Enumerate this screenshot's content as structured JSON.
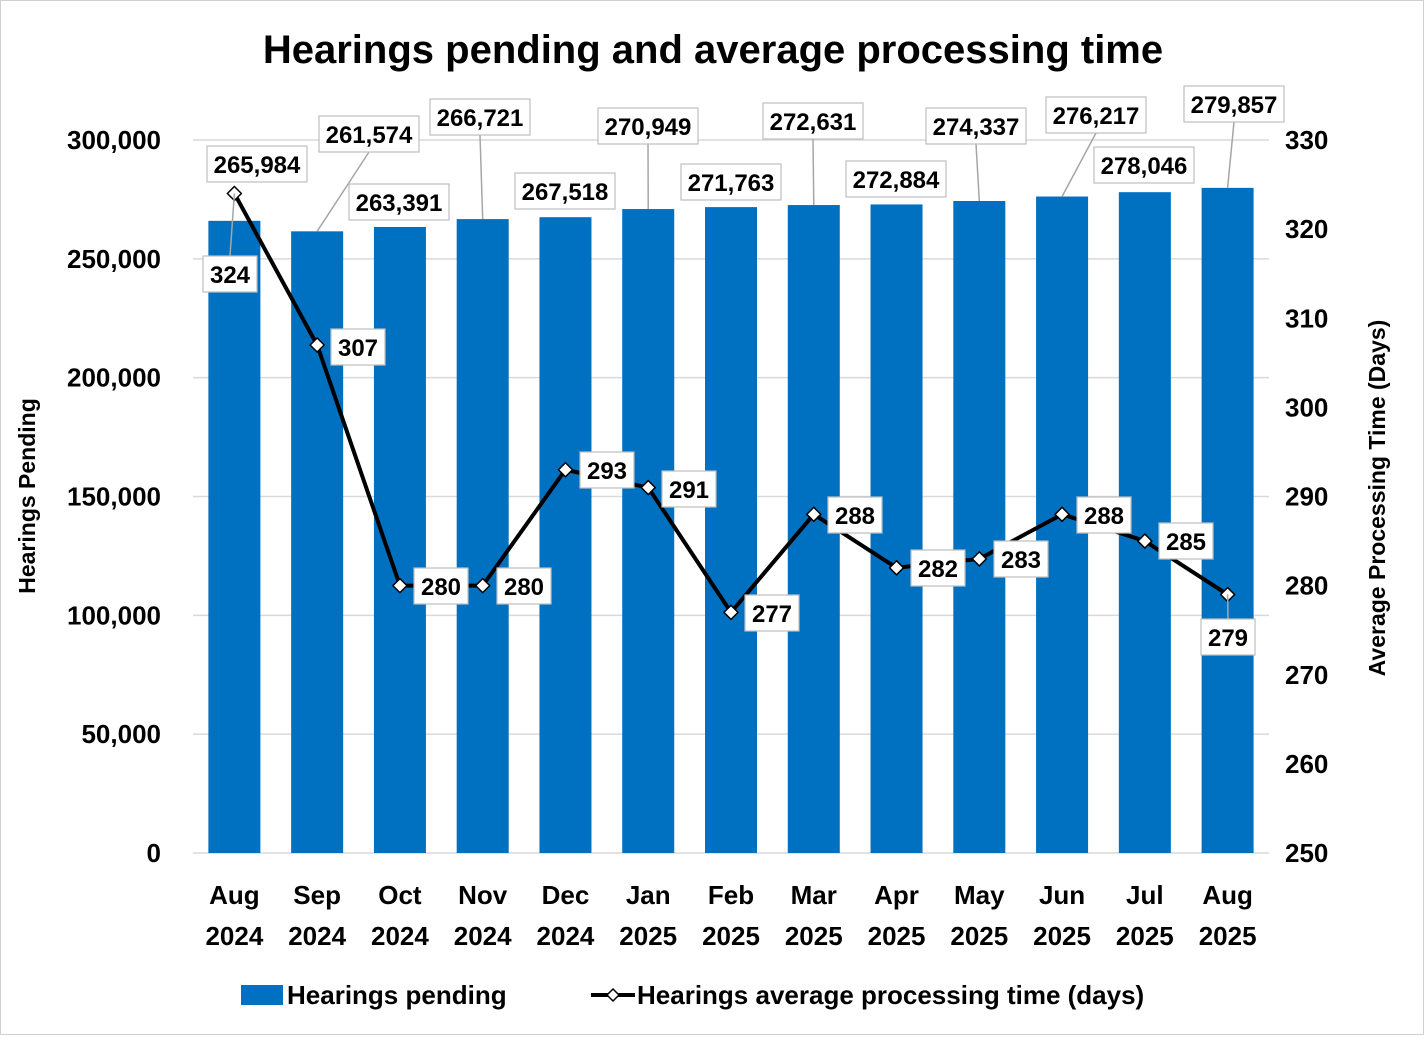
{
  "chart_data": {
    "type": "bar+line",
    "title": "Hearings pending and average processing time",
    "categories": [
      "Aug 2024",
      "Sep 2024",
      "Oct 2024",
      "Nov 2024",
      "Dec 2024",
      "Jan 2025",
      "Feb 2025",
      "Mar 2025",
      "Apr 2025",
      "May 2025",
      "Jun 2025",
      "Jul 2025",
      "Aug 2025"
    ],
    "y_left": {
      "label": "Hearings Pending",
      "range": [
        0,
        300000
      ],
      "ticks": [
        "0",
        "50,000",
        "100,000",
        "150,000",
        "200,000",
        "250,000",
        "300,000"
      ]
    },
    "y_right": {
      "label": "Average Processing Time (Days)",
      "range": [
        250,
        330
      ],
      "ticks": [
        "250",
        "260",
        "270",
        "280",
        "290",
        "300",
        "310",
        "320",
        "330"
      ]
    },
    "grid": true,
    "legend_position": "bottom",
    "series": [
      {
        "name": "Hearings pending",
        "type": "bar",
        "axis": "left",
        "color": "#0070C0",
        "values": [
          265984,
          261574,
          263391,
          266721,
          267518,
          270949,
          271763,
          272631,
          272884,
          274337,
          276217,
          278046,
          279857
        ],
        "labels": [
          "265,984",
          "261,574",
          "263,391",
          "266,721",
          "267,518",
          "270,949",
          "271,763",
          "272,631",
          "272,884",
          "274,337",
          "276,217",
          "278,046",
          "279,857"
        ]
      },
      {
        "name": "Hearings average processing time (days)",
        "type": "line",
        "axis": "right",
        "color": "#000000",
        "values": [
          324,
          307,
          280,
          280,
          293,
          291,
          277,
          288,
          282,
          283,
          288,
          285,
          279
        ],
        "labels": [
          "324",
          "307",
          "280",
          "280",
          "293",
          "291",
          "277",
          "288",
          "282",
          "283",
          "288",
          "285",
          "279"
        ]
      }
    ]
  }
}
